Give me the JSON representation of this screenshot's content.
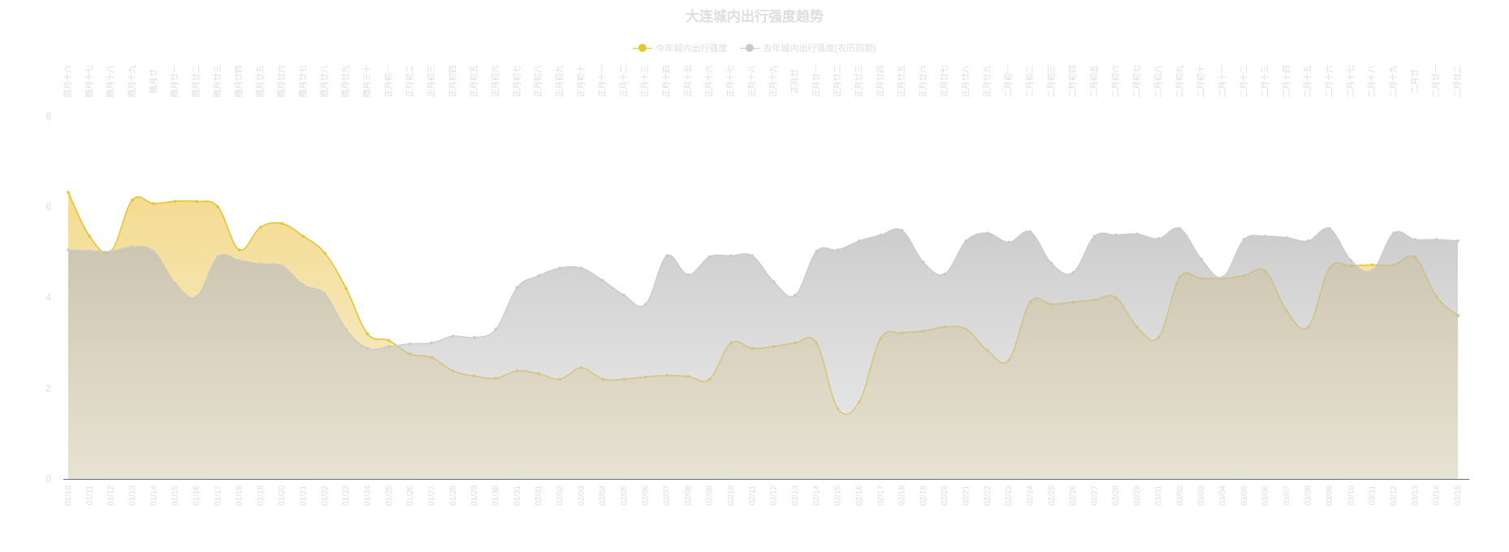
{
  "chart_data": {
    "type": "area",
    "title": "大连城内出行强度趋势",
    "ylim": [
      0,
      8
    ],
    "yticks": [
      "0",
      "2",
      "4",
      "6",
      "8"
    ],
    "grid": false,
    "legend_position": "top-center",
    "x": [
      "01/10",
      "01/11",
      "01/12",
      "01/13",
      "01/14",
      "01/15",
      "01/16",
      "01/17",
      "01/18",
      "01/19",
      "01/20",
      "01/21",
      "01/22",
      "01/23",
      "01/24",
      "01/25",
      "01/26",
      "01/27",
      "01/28",
      "01/29",
      "01/30",
      "01/31",
      "02/01",
      "02/02",
      "02/03",
      "02/04",
      "02/05",
      "02/06",
      "02/07",
      "02/08",
      "02/09",
      "02/10",
      "02/11",
      "02/12",
      "02/13",
      "02/14",
      "02/15",
      "02/16",
      "02/17",
      "02/18",
      "02/19",
      "02/20",
      "02/21",
      "02/22",
      "02/23",
      "02/24",
      "02/25",
      "02/26",
      "02/27",
      "02/28",
      "02/29",
      "03/01",
      "03/02",
      "03/03",
      "03/04",
      "03/05",
      "03/06",
      "03/07",
      "03/08",
      "03/09",
      "03/10",
      "03/11",
      "03/12",
      "03/13",
      "03/14",
      "03/15"
    ],
    "x_top": [
      "腊月十六",
      "腊月十七",
      "腊月十八",
      "腊月十九",
      "腊月廿",
      "腊月廿一",
      "腊月廿二",
      "腊月廿三",
      "腊月廿四",
      "腊月廿五",
      "腊月廿六",
      "腊月廿七",
      "腊月廿八",
      "腊月廿九",
      "腊月三十",
      "正月初一",
      "正月初二",
      "正月初三",
      "正月初四",
      "正月初五",
      "正月初六",
      "正月初七",
      "正月初八",
      "正月初九",
      "正月初十",
      "正月十一",
      "正月十二",
      "正月十三",
      "正月十四",
      "正月十五",
      "正月十六",
      "正月十七",
      "正月十八",
      "正月十九",
      "正月廿",
      "正月廿一",
      "正月廿二",
      "正月廿三",
      "正月廿四",
      "正月廿五",
      "正月廿六",
      "正月廿七",
      "正月廿八",
      "正月廿九",
      "二月初一",
      "二月初二",
      "二月初三",
      "二月初四",
      "二月初五",
      "二月初六",
      "二月初七",
      "二月初八",
      "二月初九",
      "二月初十",
      "二月十一",
      "二月十二",
      "二月十三",
      "二月十四",
      "二月十五",
      "二月十六",
      "二月十七",
      "二月十八",
      "二月十九",
      "二月廿",
      "二月廿一",
      "二月廿二"
    ],
    "series": [
      {
        "name": "今年城内出行强度",
        "color": "#e8c52e",
        "values": [
          6.32,
          5.35,
          5.02,
          6.15,
          6.07,
          6.12,
          6.12,
          6.0,
          5.05,
          5.55,
          5.63,
          5.35,
          4.98,
          4.2,
          3.2,
          3.05,
          2.75,
          2.68,
          2.38,
          2.27,
          2.22,
          2.38,
          2.32,
          2.2,
          2.45,
          2.2,
          2.2,
          2.25,
          2.28,
          2.26,
          2.2,
          3.0,
          2.88,
          2.92,
          3.0,
          3.0,
          1.55,
          1.7,
          3.1,
          3.22,
          3.26,
          3.35,
          3.3,
          2.83,
          2.62,
          3.9,
          3.85,
          3.9,
          3.95,
          4.0,
          3.35,
          3.12,
          4.45,
          4.42,
          4.42,
          4.48,
          4.58,
          3.7,
          3.35,
          4.65,
          4.7,
          4.72,
          4.72,
          4.88,
          4.02,
          3.6
        ]
      },
      {
        "name": "去年城内出行强度(农历同期)",
        "color": "#c9c9c9",
        "values": [
          5.05,
          5.03,
          5.02,
          5.12,
          5.02,
          4.32,
          4.02,
          4.9,
          4.82,
          4.74,
          4.7,
          4.28,
          4.08,
          3.3,
          2.88,
          2.92,
          2.98,
          3.0,
          3.15,
          3.12,
          3.3,
          4.22,
          4.48,
          4.65,
          4.65,
          4.38,
          4.05,
          3.85,
          4.92,
          4.5,
          4.9,
          4.92,
          4.92,
          4.35,
          4.05,
          5.02,
          5.05,
          5.25,
          5.38,
          5.48,
          4.78,
          4.52,
          5.25,
          5.42,
          5.22,
          5.45,
          4.75,
          4.55,
          5.35,
          5.38,
          5.4,
          5.3,
          5.52,
          4.85,
          4.45,
          5.28,
          5.35,
          5.32,
          5.25,
          5.52,
          4.82,
          4.6,
          5.42,
          5.28,
          5.28,
          5.25
        ]
      }
    ]
  }
}
